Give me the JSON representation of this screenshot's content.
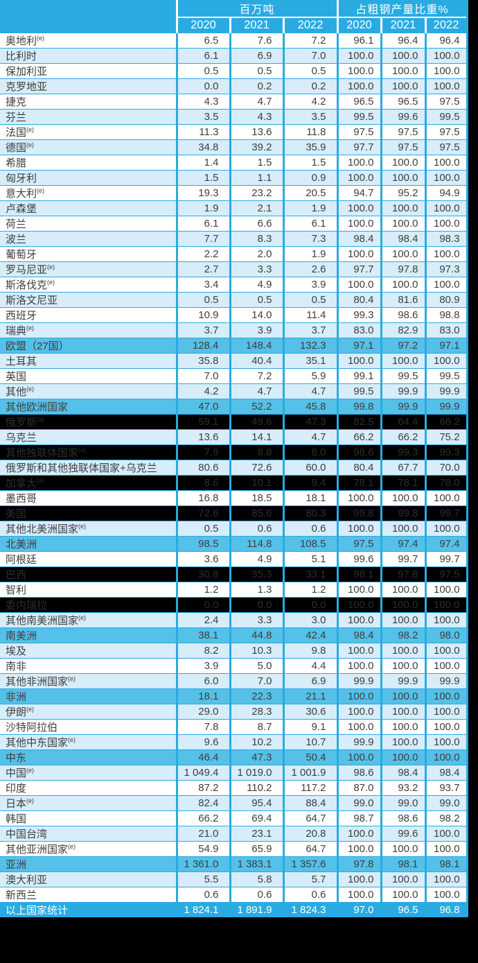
{
  "colors": {
    "header_accent": "#29abe2",
    "light_row": "#d7edf9",
    "subtotal_row": "#55c0e8",
    "highlight_row_bg": "#000000",
    "total_row_bg": "#29abe2"
  },
  "chart_data": {
    "type": "table",
    "title": "",
    "column_groups": [
      {
        "label": "百万吨",
        "years": [
          "2020",
          "2021",
          "2022"
        ]
      },
      {
        "label": "占粗钢产量比重%",
        "years": [
          "2020",
          "2021",
          "2022"
        ]
      }
    ],
    "rows": [
      {
        "name": "奥地利",
        "footnote": "(e)",
        "mt": [
          "6.5",
          "7.6",
          "7.2"
        ],
        "pct": [
          "96.1",
          "96.4",
          "96.4"
        ],
        "style": "white"
      },
      {
        "name": "比利时",
        "footnote": "",
        "mt": [
          "6.1",
          "6.9",
          "7.0"
        ],
        "pct": [
          "100.0",
          "100.0",
          "100.0"
        ],
        "style": "light"
      },
      {
        "name": "保加利亚",
        "footnote": "",
        "mt": [
          "0.5",
          "0.5",
          "0.5"
        ],
        "pct": [
          "100.0",
          "100.0",
          "100.0"
        ],
        "style": "white"
      },
      {
        "name": "克罗地亚",
        "footnote": "",
        "mt": [
          "0.0",
          "0.2",
          "0.2"
        ],
        "pct": [
          "100.0",
          "100.0",
          "100.0"
        ],
        "style": "light"
      },
      {
        "name": "捷克",
        "footnote": "",
        "mt": [
          "4.3",
          "4.7",
          "4.2"
        ],
        "pct": [
          "96.5",
          "96.5",
          "97.5"
        ],
        "style": "white"
      },
      {
        "name": "芬兰",
        "footnote": "",
        "mt": [
          "3.5",
          "4.3",
          "3.5"
        ],
        "pct": [
          "99.5",
          "99.6",
          "99.5"
        ],
        "style": "light"
      },
      {
        "name": "法国",
        "footnote": "(e)",
        "mt": [
          "11.3",
          "13.6",
          "11.8"
        ],
        "pct": [
          "97.5",
          "97.5",
          "97.5"
        ],
        "style": "white"
      },
      {
        "name": "德国",
        "footnote": "(e)",
        "mt": [
          "34.8",
          "39.2",
          "35.9"
        ],
        "pct": [
          "97.7",
          "97.5",
          "97.5"
        ],
        "style": "light"
      },
      {
        "name": "希腊",
        "footnote": "",
        "mt": [
          "1.4",
          "1.5",
          "1.5"
        ],
        "pct": [
          "100.0",
          "100.0",
          "100.0"
        ],
        "style": "white"
      },
      {
        "name": "匈牙利",
        "footnote": "",
        "mt": [
          "1.5",
          "1.1",
          "0.9"
        ],
        "pct": [
          "100.0",
          "100.0",
          "100.0"
        ],
        "style": "light"
      },
      {
        "name": "意大利",
        "footnote": "(e)",
        "mt": [
          "19.3",
          "23.2",
          "20.5"
        ],
        "pct": [
          "94.7",
          "95.2",
          "94.9"
        ],
        "style": "white"
      },
      {
        "name": "卢森堡",
        "footnote": "",
        "mt": [
          "1.9",
          "2.1",
          "1.9"
        ],
        "pct": [
          "100.0",
          "100.0",
          "100.0"
        ],
        "style": "light"
      },
      {
        "name": "荷兰",
        "footnote": "",
        "mt": [
          "6.1",
          "6.6",
          "6.1"
        ],
        "pct": [
          "100.0",
          "100.0",
          "100.0"
        ],
        "style": "white"
      },
      {
        "name": "波兰",
        "footnote": "",
        "mt": [
          "7.7",
          "8.3",
          "7.3"
        ],
        "pct": [
          "98.4",
          "98.4",
          "98.3"
        ],
        "style": "light"
      },
      {
        "name": "葡萄牙",
        "footnote": "",
        "mt": [
          "2.2",
          "2.0",
          "1.9"
        ],
        "pct": [
          "100.0",
          "100.0",
          "100.0"
        ],
        "style": "white"
      },
      {
        "name": "罗马尼亚",
        "footnote": "(e)",
        "mt": [
          "2.7",
          "3.3",
          "2.6"
        ],
        "pct": [
          "97.7",
          "97.8",
          "97.3"
        ],
        "style": "light"
      },
      {
        "name": "斯洛伐克",
        "footnote": "(e)",
        "mt": [
          "3.4",
          "4.9",
          "3.9"
        ],
        "pct": [
          "100.0",
          "100.0",
          "100.0"
        ],
        "style": "white"
      },
      {
        "name": "斯洛文尼亚",
        "footnote": "",
        "mt": [
          "0.5",
          "0.5",
          "0.5"
        ],
        "pct": [
          "80.4",
          "81.6",
          "80.9"
        ],
        "style": "light"
      },
      {
        "name": "西班牙",
        "footnote": "",
        "mt": [
          "10.9",
          "14.0",
          "11.4"
        ],
        "pct": [
          "99.3",
          "98.6",
          "98.8"
        ],
        "style": "white"
      },
      {
        "name": "瑞典",
        "footnote": "(e)",
        "mt": [
          "3.7",
          "3.9",
          "3.7"
        ],
        "pct": [
          "83.0",
          "82.9",
          "83.0"
        ],
        "style": "light"
      },
      {
        "name": "欧盟（27国）",
        "footnote": "",
        "mt": [
          "128.4",
          "148.4",
          "132.3"
        ],
        "pct": [
          "97.1",
          "97.2",
          "97.1"
        ],
        "style": "subtotal"
      },
      {
        "name": "土耳其",
        "footnote": "",
        "mt": [
          "35.8",
          "40.4",
          "35.1"
        ],
        "pct": [
          "100.0",
          "100.0",
          "100.0"
        ],
        "style": "light"
      },
      {
        "name": "英国",
        "footnote": "",
        "mt": [
          "7.0",
          "7.2",
          "5.9"
        ],
        "pct": [
          "99.1",
          "99.5",
          "99.5"
        ],
        "style": "white"
      },
      {
        "name": "其他",
        "footnote": "(e)",
        "mt": [
          "4.2",
          "4.7",
          "4.7"
        ],
        "pct": [
          "99.5",
          "99.9",
          "99.9"
        ],
        "style": "light"
      },
      {
        "name": "其他欧洲国家",
        "footnote": "",
        "mt": [
          "47.0",
          "52.2",
          "45.8"
        ],
        "pct": [
          "99.8",
          "99.9",
          "99.9"
        ],
        "style": "subtotal"
      },
      {
        "name": "俄罗斯",
        "footnote": "(a)",
        "mt": [
          "59.1",
          "49.6",
          "47.3"
        ],
        "pct": [
          "82.5",
          "64.4",
          "66.2"
        ],
        "style": "black"
      },
      {
        "name": "乌克兰",
        "footnote": "",
        "mt": [
          "13.6",
          "14.1",
          "4.7"
        ],
        "pct": [
          "66.2",
          "66.2",
          "75.2"
        ],
        "style": "light"
      },
      {
        "name": "其他独联体国家",
        "footnote": "(a)",
        "mt": [
          "7.9",
          "8.8",
          "8.0"
        ],
        "pct": [
          "98.6",
          "99.3",
          "99.3"
        ],
        "style": "black"
      },
      {
        "name": "俄罗斯和其他独联体国家+乌克兰",
        "footnote": "",
        "mt": [
          "80.6",
          "72.6",
          "60.0"
        ],
        "pct": [
          "80.4",
          "67.7",
          "70.0"
        ],
        "style": "light"
      },
      {
        "name": "加拿大",
        "footnote": "(a)",
        "mt": [
          "8.6",
          "10.1",
          "9.4"
        ],
        "pct": [
          "78.1",
          "78.1",
          "78.0"
        ],
        "style": "black"
      },
      {
        "name": "墨西哥",
        "footnote": "",
        "mt": [
          "16.8",
          "18.5",
          "18.1"
        ],
        "pct": [
          "100.0",
          "100.0",
          "100.0"
        ],
        "style": "white"
      },
      {
        "name": "美国",
        "footnote": "",
        "mt": [
          "72.6",
          "85.6",
          "80.3"
        ],
        "pct": [
          "99.8",
          "99.8",
          "99.7"
        ],
        "style": "black"
      },
      {
        "name": "其他北美洲国家",
        "footnote": "(e)",
        "mt": [
          "0.5",
          "0.6",
          "0.6"
        ],
        "pct": [
          "100.0",
          "100.0",
          "100.0"
        ],
        "style": "light"
      },
      {
        "name": "北美洲",
        "footnote": "",
        "mt": [
          "98.5",
          "114.8",
          "108.5"
        ],
        "pct": [
          "97.5",
          "97.4",
          "97.4"
        ],
        "style": "subtotal"
      },
      {
        "name": "阿根廷",
        "footnote": "",
        "mt": [
          "3.6",
          "4.9",
          "5.1"
        ],
        "pct": [
          "99.6",
          "99.7",
          "99.7"
        ],
        "style": "white"
      },
      {
        "name": "巴西",
        "footnote": "",
        "mt": [
          "30.8",
          "35.3",
          "33.1"
        ],
        "pct": [
          "98.1",
          "97.8",
          "97.5"
        ],
        "style": "black"
      },
      {
        "name": "智利",
        "footnote": "",
        "mt": [
          "1.2",
          "1.3",
          "1.2"
        ],
        "pct": [
          "100.0",
          "100.0",
          "100.0"
        ],
        "style": "white"
      },
      {
        "name": "委内瑞拉",
        "footnote": "",
        "mt": [
          "0.0",
          "0.0",
          "0.0"
        ],
        "pct": [
          "100.0",
          "100.0",
          "100.0"
        ],
        "style": "black"
      },
      {
        "name": "其他南美洲国家",
        "footnote": "(e)",
        "mt": [
          "2.4",
          "3.3",
          "3.0"
        ],
        "pct": [
          "100.0",
          "100.0",
          "100.0"
        ],
        "style": "light"
      },
      {
        "name": "南美洲",
        "footnote": "",
        "mt": [
          "38.1",
          "44.8",
          "42.4"
        ],
        "pct": [
          "98.4",
          "98.2",
          "98.0"
        ],
        "style": "subtotal"
      },
      {
        "name": "埃及",
        "footnote": "",
        "mt": [
          "8.2",
          "10.3",
          "9.8"
        ],
        "pct": [
          "100.0",
          "100.0",
          "100.0"
        ],
        "style": "light"
      },
      {
        "name": "南非",
        "footnote": "",
        "mt": [
          "3.9",
          "5.0",
          "4.4"
        ],
        "pct": [
          "100.0",
          "100.0",
          "100.0"
        ],
        "style": "white"
      },
      {
        "name": "其他非洲国家",
        "footnote": "(e)",
        "mt": [
          "6.0",
          "7.0",
          "6.9"
        ],
        "pct": [
          "99.9",
          "99.9",
          "99.9"
        ],
        "style": "light"
      },
      {
        "name": "非洲",
        "footnote": "",
        "mt": [
          "18.1",
          "22.3",
          "21.1"
        ],
        "pct": [
          "100.0",
          "100.0",
          "100.0"
        ],
        "style": "subtotal"
      },
      {
        "name": "伊朗",
        "footnote": "(e)",
        "mt": [
          "29.0",
          "28.3",
          "30.6"
        ],
        "pct": [
          "100.0",
          "100.0",
          "100.0"
        ],
        "style": "light"
      },
      {
        "name": "沙特阿拉伯",
        "footnote": "",
        "mt": [
          "7.8",
          "8.7",
          "9.1"
        ],
        "pct": [
          "100.0",
          "100.0",
          "100.0"
        ],
        "style": "white"
      },
      {
        "name": "其他中东国家",
        "footnote": "(e)",
        "mt": [
          "9.6",
          "10.2",
          "10.7"
        ],
        "pct": [
          "99.9",
          "100.0",
          "100.0"
        ],
        "style": "light"
      },
      {
        "name": "中东",
        "footnote": "",
        "mt": [
          "46.4",
          "47.3",
          "50.4"
        ],
        "pct": [
          "100.0",
          "100.0",
          "100.0"
        ],
        "style": "subtotal"
      },
      {
        "name": "中国",
        "footnote": "(e)",
        "mt": [
          "1 049.4",
          "1 019.0",
          "1 001.9"
        ],
        "pct": [
          "98.6",
          "98.4",
          "98.4"
        ],
        "style": "light"
      },
      {
        "name": "印度",
        "footnote": "",
        "mt": [
          "87.2",
          "110.2",
          "117.2"
        ],
        "pct": [
          "87.0",
          "93.2",
          "93.7"
        ],
        "style": "white"
      },
      {
        "name": "日本",
        "footnote": "(e)",
        "mt": [
          "82.4",
          "95.4",
          "88.4"
        ],
        "pct": [
          "99.0",
          "99.0",
          "99.0"
        ],
        "style": "light"
      },
      {
        "name": "韩国",
        "footnote": "",
        "mt": [
          "66.2",
          "69.4",
          "64.7"
        ],
        "pct": [
          "98.7",
          "98.6",
          "98.2"
        ],
        "style": "white"
      },
      {
        "name": "中国台湾",
        "footnote": "",
        "mt": [
          "21.0",
          "23.1",
          "20.8"
        ],
        "pct": [
          "100.0",
          "99.6",
          "100.0"
        ],
        "style": "light"
      },
      {
        "name": "其他亚洲国家",
        "footnote": "(e)",
        "mt": [
          "54.9",
          "65.9",
          "64.7"
        ],
        "pct": [
          "100.0",
          "100.0",
          "100.0"
        ],
        "style": "white"
      },
      {
        "name": "亚洲",
        "footnote": "",
        "mt": [
          "1 361.0",
          "1 383.1",
          "1 357.6"
        ],
        "pct": [
          "97.8",
          "98.1",
          "98.1"
        ],
        "style": "subtotal"
      },
      {
        "name": "澳大利亚",
        "footnote": "",
        "mt": [
          "5.5",
          "5.8",
          "5.7"
        ],
        "pct": [
          "100.0",
          "100.0",
          "100.0"
        ],
        "style": "light"
      },
      {
        "name": "新西兰",
        "footnote": "",
        "mt": [
          "0.6",
          "0.6",
          "0.6"
        ],
        "pct": [
          "100.0",
          "100.0",
          "100.0"
        ],
        "style": "white"
      },
      {
        "name": "以上国家统计",
        "footnote": "",
        "mt": [
          "1 824.1",
          "1 891.9",
          "1 824.3"
        ],
        "pct": [
          "97.0",
          "96.5",
          "96.8"
        ],
        "style": "total"
      }
    ]
  }
}
